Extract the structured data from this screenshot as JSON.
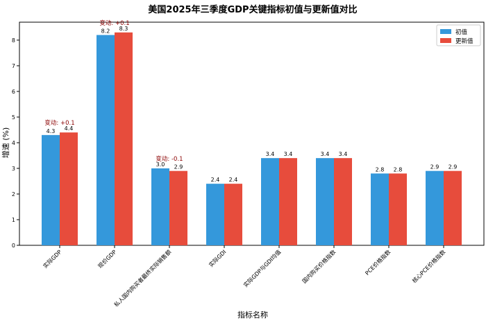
{
  "chart_data": {
    "type": "bar",
    "title": "美国2025年三季度GDP关键指标初值与更新值对比",
    "xlabel": "指标名称",
    "ylabel": "增速 (%)",
    "ylim": [
      0,
      8.7
    ],
    "yticks": [
      0,
      1,
      2,
      3,
      4,
      5,
      6,
      7,
      8
    ],
    "grid": false,
    "legend_position": "top-right",
    "categories": [
      "实际GDP",
      "现价GDP",
      "私人国内购买者最终实际销售额",
      "实际GDI",
      "实际GDP与GDI均值",
      "国内购买价格指数",
      "PCE价格指数",
      "核心PCE价格指数"
    ],
    "series": [
      {
        "name": "初值",
        "color": "#3498db",
        "values": [
          4.3,
          8.2,
          3.0,
          2.4,
          3.4,
          3.4,
          2.8,
          2.9
        ]
      },
      {
        "name": "更新值",
        "color": "#e74c3c",
        "values": [
          4.4,
          8.3,
          2.9,
          2.4,
          3.4,
          3.4,
          2.8,
          2.9
        ]
      }
    ],
    "value_labels": [
      [
        "4.3",
        "8.2",
        "3.0",
        "2.4",
        "3.4",
        "3.4",
        "2.8",
        "2.9"
      ],
      [
        "4.4",
        "8.3",
        "2.9",
        "2.4",
        "3.4",
        "3.4",
        "2.8",
        "2.9"
      ]
    ],
    "annotations": [
      {
        "category": "实际GDP",
        "text": "变动: +0.1",
        "color": "#8b0000"
      },
      {
        "category": "现价GDP",
        "text": "变动: +0.1",
        "color": "#8b0000"
      },
      {
        "category": "私人国内购买者最终实际销售额",
        "text": "变动: -0.1",
        "color": "#8b0000"
      }
    ]
  }
}
